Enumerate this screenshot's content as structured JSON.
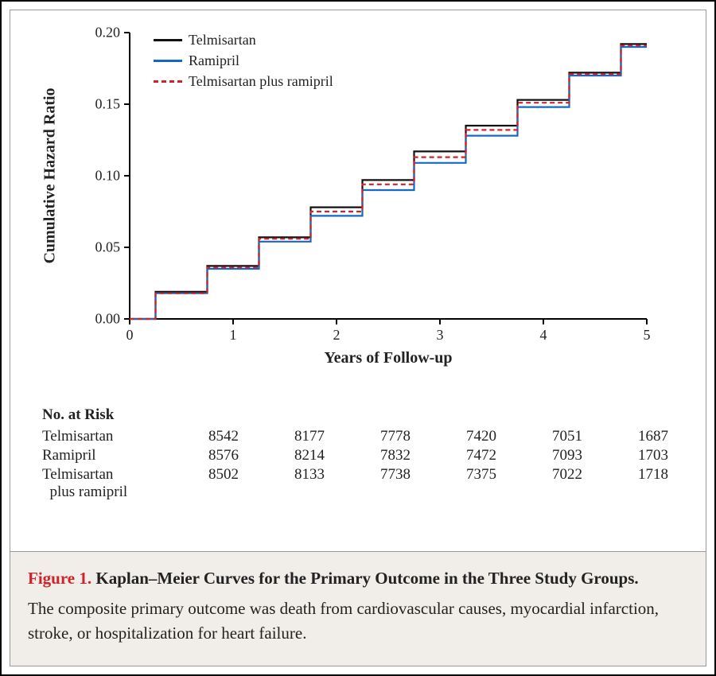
{
  "chart": {
    "type": "line-kaplan-meier",
    "x_axis": {
      "title": "Years of Follow-up",
      "lim": [
        0,
        5
      ],
      "ticks": [
        0,
        1,
        2,
        3,
        4,
        5
      ],
      "title_fontsize": 20,
      "tick_fontsize": 18
    },
    "y_axis": {
      "title": "Cumulative Hazard Ratio",
      "lim": [
        0.0,
        0.2
      ],
      "ticks": [
        0.0,
        0.05,
        0.1,
        0.15,
        0.2
      ],
      "tick_labels": [
        "0.00",
        "0.05",
        "0.10",
        "0.15",
        "0.20"
      ],
      "title_fontsize": 20,
      "tick_fontsize": 18
    },
    "line_width": 2.2,
    "background_color": "#ffffff",
    "series": [
      {
        "name": "Telmisartan",
        "color": "#111111",
        "dash": "solid",
        "points": [
          [
            0,
            0.0
          ],
          [
            0.5,
            0.019
          ],
          [
            1.0,
            0.037
          ],
          [
            1.5,
            0.057
          ],
          [
            2.0,
            0.078
          ],
          [
            2.5,
            0.097
          ],
          [
            3.0,
            0.117
          ],
          [
            3.5,
            0.135
          ],
          [
            4.0,
            0.153
          ],
          [
            4.5,
            0.172
          ],
          [
            5.0,
            0.192
          ]
        ]
      },
      {
        "name": "Ramipril",
        "color": "#1469c7",
        "dash": "solid",
        "points": [
          [
            0,
            0.0
          ],
          [
            0.5,
            0.018
          ],
          [
            1.0,
            0.035
          ],
          [
            1.5,
            0.054
          ],
          [
            2.0,
            0.072
          ],
          [
            2.5,
            0.09
          ],
          [
            3.0,
            0.109
          ],
          [
            3.5,
            0.128
          ],
          [
            4.0,
            0.148
          ],
          [
            4.5,
            0.17
          ],
          [
            5.0,
            0.19
          ]
        ]
      },
      {
        "name": "Telmisartan plus ramipril",
        "color": "#d0222a",
        "dash": "6,4",
        "points": [
          [
            0,
            0.0
          ],
          [
            0.5,
            0.018
          ],
          [
            1.0,
            0.036
          ],
          [
            1.5,
            0.056
          ],
          [
            2.0,
            0.075
          ],
          [
            2.5,
            0.094
          ],
          [
            3.0,
            0.113
          ],
          [
            3.5,
            0.132
          ],
          [
            4.0,
            0.151
          ],
          [
            4.5,
            0.171
          ],
          [
            5.0,
            0.191
          ]
        ]
      }
    ],
    "legend": {
      "position": "top-left-inside",
      "fontsize": 18
    }
  },
  "risk_table": {
    "title": "No. at Risk",
    "rows": [
      {
        "name": "Telmisartan",
        "values": [
          "8542",
          "8177",
          "7778",
          "7420",
          "7051",
          "1687"
        ]
      },
      {
        "name": "Ramipril",
        "values": [
          "8576",
          "8214",
          "7832",
          "7472",
          "7093",
          "1703"
        ]
      },
      {
        "name": "Telmisartan\n  plus ramipril",
        "values": [
          "8502",
          "8133",
          "7738",
          "7375",
          "7022",
          "1718"
        ]
      }
    ],
    "fontsize": 19
  },
  "caption": {
    "label": "Figure 1.",
    "title": "Kaplan–Meier Curves for the Primary Outcome in the Three Study Groups.",
    "body": "The composite primary outcome was death from cardiovascular causes, myocardial infarction, stroke, or hospitalization for heart failure.",
    "label_color": "#d0222a",
    "fontsize": 21,
    "background_color": "#f1eee9"
  }
}
